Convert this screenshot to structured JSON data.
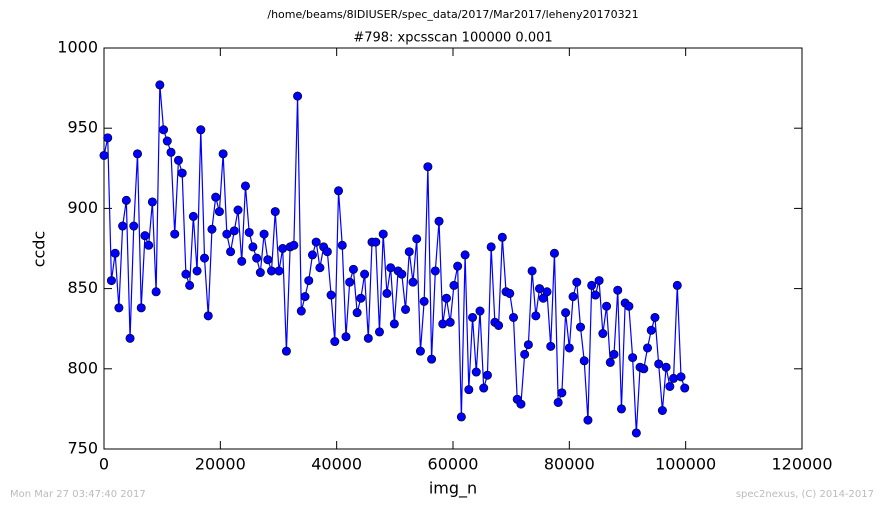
{
  "chart_data": {
    "type": "line",
    "title": "/home/beams/8IDIUSER/spec_data/2017/Mar2017/leheny20170321",
    "subtitle": "#798: xpcsscan 100000 0.001",
    "x_label": "img_n",
    "y_label": "ccdc",
    "footer_left": "Mon Mar 27 03:47:40 2017",
    "footer_right": "spec2nexus, (C) 2014-2017",
    "x": [
      0,
      640,
      1280,
      1920,
      2560,
      3200,
      3840,
      4480,
      5120,
      5760,
      6400,
      7040,
      7680,
      8320,
      8960,
      9600,
      10240,
      10880,
      11520,
      12160,
      12800,
      13440,
      14080,
      14720,
      15360,
      16000,
      16640,
      17280,
      17920,
      18560,
      19200,
      19840,
      20480,
      21120,
      21760,
      22400,
      23040,
      23680,
      24320,
      24960,
      25600,
      26240,
      26880,
      27520,
      28160,
      28800,
      29440,
      30080,
      30720,
      31360,
      32000,
      32640,
      33280,
      33920,
      34560,
      35200,
      35840,
      36480,
      37120,
      37760,
      38400,
      39040,
      39680,
      40320,
      40960,
      41600,
      42240,
      42880,
      43520,
      44160,
      44800,
      45440,
      46080,
      46720,
      47360,
      48000,
      48640,
      49280,
      49920,
      50560,
      51200,
      51840,
      52480,
      53120,
      53760,
      54400,
      55040,
      55680,
      56320,
      56960,
      57600,
      58240,
      58880,
      59520,
      60160,
      60800,
      61440,
      62080,
      62720,
      63360,
      64000,
      64640,
      65280,
      65920,
      66560,
      67200,
      67840,
      68480,
      69120,
      69760,
      70400,
      71040,
      71680,
      72320,
      72960,
      73600,
      74240,
      74880,
      75520,
      76160,
      76800,
      77440,
      78080,
      78720,
      79360,
      80000,
      80640,
      81280,
      81920,
      82560,
      83200,
      83840,
      84480,
      85120,
      85760,
      86400,
      87040,
      87680,
      88320,
      88960,
      89600,
      90240,
      90880,
      91520,
      92160,
      92800,
      93440,
      94080,
      94720,
      95360,
      96000,
      96640,
      97280,
      97920,
      98560,
      99200,
      99840
    ],
    "series": [
      {
        "name": "ccdc",
        "color": "#0000ff",
        "values": [
          933,
          944,
          855,
          872,
          838,
          889,
          905,
          819,
          889,
          934,
          838,
          883,
          877,
          904,
          848,
          977,
          949,
          942,
          935,
          884,
          930,
          922,
          859,
          852,
          895,
          861,
          949,
          869,
          833,
          887,
          907,
          898,
          934,
          884,
          873,
          886,
          899,
          867,
          914,
          885,
          876,
          869,
          860,
          884,
          868,
          861,
          898,
          861,
          875,
          811,
          876,
          877,
          970,
          836,
          845,
          855,
          871,
          879,
          863,
          876,
          873,
          846,
          817,
          911,
          877,
          820,
          854,
          862,
          835,
          844,
          859,
          819,
          879,
          879,
          823,
          884,
          847,
          863,
          828,
          861,
          859,
          837,
          873,
          854,
          881,
          811,
          842,
          926,
          806,
          861,
          892,
          828,
          844,
          829,
          852,
          864,
          770,
          871,
          787,
          832,
          798,
          836,
          788,
          796,
          876,
          829,
          827,
          882,
          848,
          847,
          832,
          781,
          778,
          809,
          815,
          861,
          833,
          850,
          844,
          848,
          814,
          872,
          779,
          785,
          835,
          813,
          845,
          854,
          826,
          805,
          768,
          852,
          846,
          855,
          822,
          839,
          804,
          809,
          849,
          775,
          841,
          839,
          807,
          760,
          801,
          800,
          813,
          824,
          832,
          803,
          774,
          801,
          789,
          794,
          852,
          795,
          788
        ]
      }
    ],
    "xlim": [
      0,
      120000
    ],
    "xticks": [
      0,
      20000,
      40000,
      60000,
      80000,
      100000,
      120000
    ],
    "ylim": [
      750,
      1000
    ],
    "yticks": [
      750,
      800,
      850,
      900,
      950,
      1000
    ]
  }
}
